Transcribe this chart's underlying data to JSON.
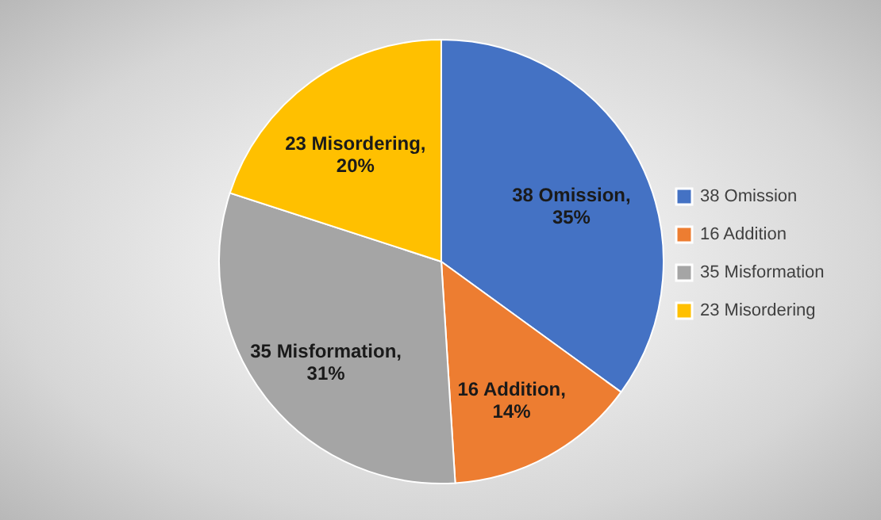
{
  "chart_data": {
    "type": "pie",
    "categories": [
      "38 Omission",
      "16 Addition",
      "35 Misformation",
      "23 Misordering"
    ],
    "values": [
      35,
      14,
      31,
      20
    ],
    "value_labels": [
      "38 Omission, 35%",
      "16 Addition, 14%",
      "35 Misformation, 31%",
      "23 Misordering, 20%"
    ],
    "colors": [
      "#4472c4",
      "#ed7d31",
      "#a5a5a5",
      "#ffc000"
    ],
    "legend": "right"
  }
}
